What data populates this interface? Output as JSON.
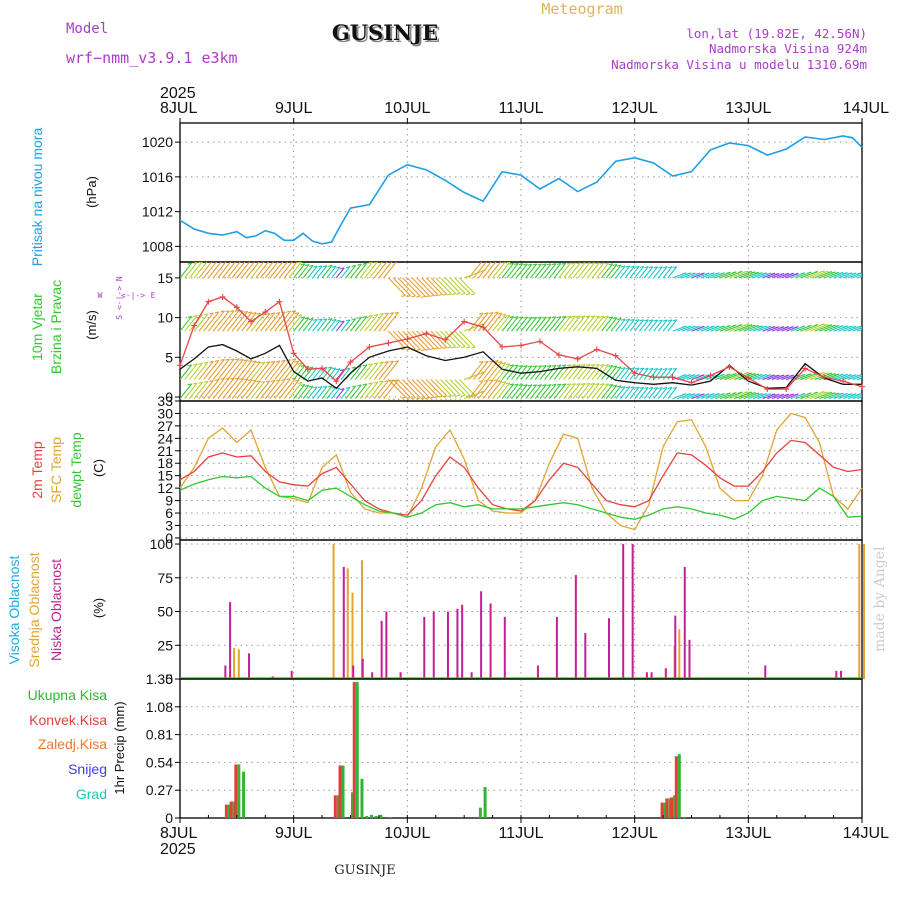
{
  "header": {
    "model_label": "Model",
    "model_name": "wrf−nmm_v3.9.1  e3km",
    "title": "GUSINJE",
    "meteogram": "Meteogram",
    "lonlat": "lon,lat (19.82E, 42.56N)",
    "altitude": "Nadmorska Visina 924m",
    "model_altitude": "Nadmorska Visina u modelu 1310.69m",
    "year": "2025",
    "footer_location": "GUSINJE",
    "credit": "made by Angel"
  },
  "colors": {
    "pressure": "#1EA0E6",
    "temp2m": "#E6413C",
    "sfc": "#E1A532",
    "dew": "#32C832",
    "cloud_high": "#1EAAE6",
    "cloud_mid": "#E1A532",
    "cloud_low": "#C31E96",
    "precip_total": "#32B432",
    "precip_conv": "#E63C3C",
    "precip_frozen": "#F07828",
    "snow": "#3C3CE6",
    "hail": "#1EC8B4",
    "header_purple": "#AA3CC8",
    "header_orange": "#E1B45A"
  },
  "time_axis": {
    "ticks": [
      "8JUL",
      "9JUL",
      "10JUL",
      "11JUL",
      "12JUL",
      "13JUL",
      "14JUL"
    ],
    "top_year": "2025",
    "bottom_year": "2025",
    "range_hours": [
      0,
      144
    ]
  },
  "chart_data": [
    {
      "type": "line",
      "panel": "pressure",
      "ylabel_title": "Pritisak na nivou mora",
      "ylabel_units": "(hPa)",
      "yticks": [
        "1008",
        "1012",
        "1016",
        "1020"
      ],
      "ylim": [
        1006.2,
        1022.2
      ],
      "x_hours": [
        0,
        3,
        6,
        9,
        12,
        14,
        16,
        18,
        20,
        22,
        24,
        26,
        28,
        30,
        32,
        34,
        36,
        40,
        44,
        48,
        52,
        56,
        60,
        64,
        68,
        72,
        76,
        80,
        84,
        88,
        92,
        96,
        100,
        104,
        108,
        112,
        116,
        120,
        124,
        128,
        132,
        136,
        140,
        142,
        144
      ],
      "values": [
        1011,
        1010,
        1009.5,
        1009.3,
        1009.7,
        1009,
        1009.2,
        1009.8,
        1009.5,
        1008.7,
        1008.7,
        1009.5,
        1008.6,
        1008.3,
        1008.5,
        1010.5,
        1012.4,
        1012.8,
        1016.2,
        1017.4,
        1016.8,
        1015.6,
        1014.2,
        1013.2,
        1016.6,
        1016.2,
        1014.6,
        1015.8,
        1014.3,
        1015.4,
        1017.8,
        1018.2,
        1017.6,
        1016.1,
        1016.6,
        1019.1,
        1019.9,
        1019.6,
        1018.5,
        1019.2,
        1020.6,
        1020.3,
        1020.7,
        1020.5,
        1019.4
      ],
      "grid": true
    },
    {
      "type": "line",
      "panel": "wind",
      "ylabel_title": "10m Vjetar Brzina i Pravac",
      "ylabel_units": "(m/s)",
      "compass": [
        "N",
        "E",
        "S",
        "W"
      ],
      "yticks": [
        "0",
        "5",
        "10",
        "15"
      ],
      "ylim": [
        -0.5,
        17.0
      ],
      "x_hours": [
        0,
        3,
        6,
        9,
        12,
        15,
        18,
        21,
        24,
        27,
        30,
        33,
        36,
        40,
        44,
        48,
        52,
        56,
        60,
        64,
        68,
        72,
        76,
        80,
        84,
        88,
        92,
        96,
        100,
        104,
        108,
        112,
        116,
        120,
        124,
        128,
        132,
        136,
        140,
        144
      ],
      "speed": [
        3.5,
        4.8,
        6.3,
        6.6,
        5.8,
        4.8,
        5.5,
        6.5,
        3.2,
        2.0,
        2.4,
        1.1,
        3.0,
        5.0,
        5.8,
        6.3,
        5.2,
        4.6,
        5.0,
        5.7,
        3.5,
        3.0,
        3.2,
        3.6,
        3.8,
        3.6,
        2.1,
        1.8,
        1.6,
        1.8,
        1.5,
        2.0,
        4.0,
        2.0,
        1.1,
        1.2,
        4.2,
        2.4,
        1.6,
        1.6
      ],
      "gust": [
        4.0,
        9.0,
        12.0,
        12.6,
        11.3,
        9.5,
        10.7,
        12.0,
        5.5,
        3.5,
        3.6,
        2.0,
        4.4,
        6.3,
        6.8,
        7.3,
        8.0,
        7.2,
        9.5,
        8.8,
        6.3,
        6.5,
        7.0,
        5.3,
        4.8,
        6.0,
        5.2,
        3.0,
        2.5,
        2.5,
        1.8,
        2.7,
        3.8,
        2.4,
        1.0,
        1.0,
        3.6,
        2.5,
        2.0,
        1.3
      ],
      "grid": true
    },
    {
      "type": "line",
      "panel": "temperature",
      "ylabel_title": "2m Temp",
      "ylabel_sub": "SFC Temp",
      "ylabel_sub2": "dewpt Temp",
      "ylabel_units": "(C)",
      "yticks": [
        "0",
        "3",
        "6",
        "9",
        "12",
        "15",
        "18",
        "21",
        "24",
        "27",
        "30",
        "33"
      ],
      "ylim": [
        -0.5,
        33
      ],
      "x_hours": [
        0,
        3,
        6,
        9,
        12,
        15,
        18,
        21,
        24,
        27,
        30,
        33,
        36,
        39,
        42,
        45,
        48,
        51,
        54,
        57,
        60,
        63,
        66,
        69,
        72,
        75,
        78,
        81,
        84,
        87,
        90,
        93,
        96,
        99,
        102,
        105,
        108,
        111,
        114,
        117,
        120,
        123,
        126,
        129,
        132,
        135,
        138,
        141,
        144
      ],
      "t2m": [
        14,
        16,
        19.5,
        20.5,
        19.5,
        19.8,
        16,
        13.5,
        12.8,
        12.5,
        15.5,
        17,
        13,
        9,
        7,
        6,
        5.5,
        9,
        15,
        19.5,
        17,
        12,
        8,
        7,
        6.5,
        9,
        14,
        18,
        17,
        13,
        9,
        8,
        7.5,
        9,
        15,
        20.5,
        20,
        17.5,
        14.5,
        12.5,
        12.5,
        16,
        20.5,
        23.5,
        23,
        20,
        17,
        16,
        16.5
      ],
      "sfc": [
        12,
        17,
        24,
        26.5,
        23,
        26,
        17,
        10,
        9.5,
        8.5,
        17,
        20,
        11,
        7,
        6,
        6,
        5,
        12,
        22,
        26,
        19,
        9,
        6.5,
        6,
        6,
        9,
        18,
        25,
        24,
        12,
        6,
        3,
        2,
        8,
        22,
        28,
        28.5,
        22,
        12,
        9,
        9,
        15,
        26,
        30,
        29,
        23,
        10,
        7,
        12
      ],
      "dew": [
        11.5,
        13,
        14,
        14.8,
        14.5,
        14.8,
        12,
        10,
        10,
        9,
        11.5,
        12,
        10,
        8,
        6.5,
        6,
        5,
        6,
        8,
        8.5,
        7.5,
        8,
        7,
        7,
        7,
        7.5,
        8,
        8.5,
        8,
        7,
        6,
        5,
        4.5,
        5.5,
        7,
        7.5,
        7,
        6,
        5.5,
        4.5,
        6,
        9,
        10,
        9.5,
        9,
        12,
        10,
        5,
        5.2
      ],
      "grid": true
    },
    {
      "type": "bar",
      "panel": "clouds",
      "ylabel_title1": "Visoka Oblacnost",
      "ylabel_title2": "Srednja Oblacnost",
      "ylabel_title3": "Niska Oblacnost",
      "ylabel_units": "(%)",
      "yticks": [
        "0",
        "25",
        "50",
        "75",
        "100"
      ],
      "ylim": [
        0,
        103
      ],
      "high": [
        [
          70,
          1
        ],
        [
          85,
          1
        ],
        [
          130,
          1
        ],
        [
          143,
          1
        ]
      ],
      "mid": [
        [
          11,
          23
        ],
        [
          12,
          22
        ],
        [
          32,
          100
        ],
        [
          35,
          82
        ],
        [
          36,
          64
        ],
        [
          38,
          88
        ],
        [
          104,
          25
        ],
        [
          105,
          37
        ],
        [
          143,
          100
        ],
        [
          144,
          100
        ]
      ],
      "low": [
        [
          10,
          10
        ],
        [
          11,
          57
        ],
        [
          15,
          19
        ],
        [
          20,
          2
        ],
        [
          24,
          6
        ],
        [
          35,
          83
        ],
        [
          37,
          10
        ],
        [
          39,
          15
        ],
        [
          41,
          5
        ],
        [
          43,
          43
        ],
        [
          44,
          50
        ],
        [
          47,
          5
        ],
        [
          52,
          46
        ],
        [
          54,
          50
        ],
        [
          57,
          50
        ],
        [
          59,
          52
        ],
        [
          60,
          55
        ],
        [
          62,
          5
        ],
        [
          64,
          65
        ],
        [
          66,
          56
        ],
        [
          69,
          46
        ],
        [
          72,
          1
        ],
        [
          76,
          10
        ],
        [
          80,
          46
        ],
        [
          84,
          77
        ],
        [
          86,
          34
        ],
        [
          91,
          45
        ],
        [
          94,
          100
        ],
        [
          96,
          100
        ],
        [
          99,
          5
        ],
        [
          100,
          5
        ],
        [
          103,
          8
        ],
        [
          105,
          47
        ],
        [
          107,
          83
        ],
        [
          108,
          29
        ],
        [
          110,
          1
        ],
        [
          118,
          1
        ],
        [
          122,
          1
        ],
        [
          124,
          10
        ],
        [
          134,
          1
        ],
        [
          135,
          1
        ],
        [
          139,
          6
        ],
        [
          140,
          6
        ],
        [
          143,
          1
        ]
      ]
    },
    {
      "type": "bar",
      "panel": "precip",
      "legend": [
        "Ukupna Kisa",
        "Konvek.Kisa",
        "Zaledj.Kisa",
        "Snijeg",
        "Grad"
      ],
      "ylabel_units": "1hr Precip (mm)",
      "yticks": [
        "0",
        "0.27",
        "0.54",
        "0.81",
        "1.08",
        "1.35"
      ],
      "ylim": [
        0,
        1.35
      ],
      "total": [
        [
          10,
          0.13
        ],
        [
          11,
          0.16
        ],
        [
          12,
          0.52
        ],
        [
          13,
          0.45
        ],
        [
          33,
          0.22
        ],
        [
          34,
          0.51
        ],
        [
          36,
          0.25
        ],
        [
          37,
          1.32
        ],
        [
          38,
          0.38
        ],
        [
          39,
          0.02
        ],
        [
          40,
          0.03
        ],
        [
          41,
          0.02
        ],
        [
          42,
          0.03
        ],
        [
          44,
          0.01
        ],
        [
          63,
          0.1
        ],
        [
          64,
          0.3
        ],
        [
          102,
          0.15
        ],
        [
          103,
          0.19
        ],
        [
          104,
          0.22
        ],
        [
          105,
          0.62
        ],
        [
          106,
          0.01
        ]
      ],
      "convective": [
        [
          10,
          0.13
        ],
        [
          11,
          0.16
        ],
        [
          12,
          0.52
        ],
        [
          33,
          0.22
        ],
        [
          34,
          0.51
        ],
        [
          37,
          1.32
        ],
        [
          102,
          0.15
        ],
        [
          103,
          0.19
        ],
        [
          104,
          0.2
        ],
        [
          105,
          0.6
        ]
      ],
      "grid": true
    }
  ]
}
